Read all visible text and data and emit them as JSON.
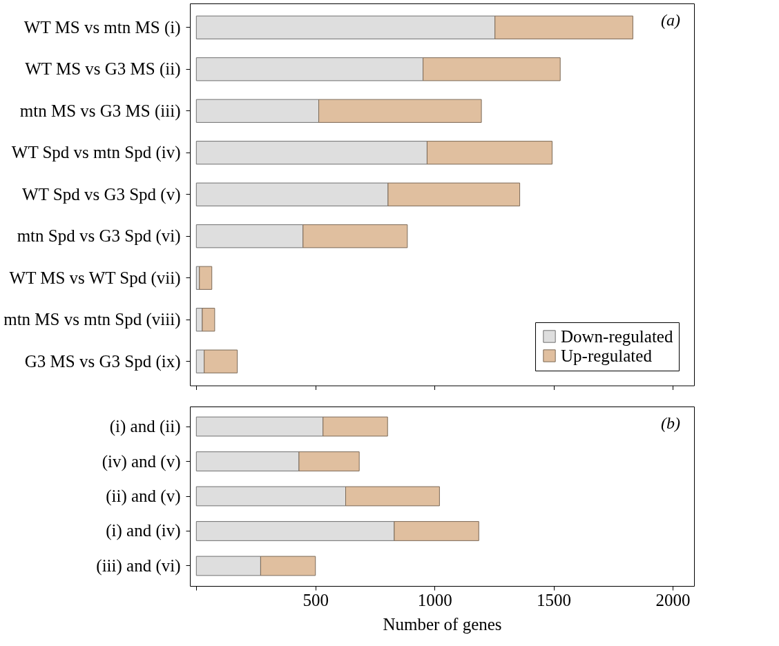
{
  "chart_data": [
    {
      "type": "bar",
      "orientation": "horizontal",
      "stacked": true,
      "categories": [
        "WT MS vs mtn MS (i)",
        "WT MS vs G3 MS (ii)",
        "mtn MS vs G3 MS (iii)",
        "WT Spd vs mtn Spd (iv)",
        "WT Spd vs G3 Spd (v)",
        "mtn Spd vs G3 Spd (vi)",
        "WT MS vs WT Spd (vii)",
        "mtn MS vs mtn Spd (viii)",
        "G3 MS vs G3 Spd (ix)"
      ],
      "series": [
        {
          "name": "Down-regulated",
          "color": "#dedede",
          "values": [
            1254,
            952,
            514,
            969,
            805,
            448,
            13,
            25,
            33
          ]
        },
        {
          "name": "Up-regulated",
          "color": "#e0bf9f",
          "values": [
            579,
            576,
            683,
            525,
            553,
            438,
            52,
            52,
            139
          ]
        }
      ],
      "xlim": [
        -27,
        2090
      ],
      "xticks": [
        {
          "value": 0,
          "label": null
        },
        500,
        1000,
        1500,
        2000
      ],
      "tick_labels": "y",
      "legend": "bottom right",
      "grid": false,
      "annotations": [
        "(a)"
      ]
    },
    {
      "type": "bar",
      "orientation": "horizontal",
      "stacked": true,
      "categories": [
        "(i) and (ii)",
        "(iv) and (v)",
        "(ii) and (v)",
        "(i) and (iv)",
        "(iii) and (vi)"
      ],
      "series": [
        {
          "color": "#dedede",
          "values": [
            532,
            431,
            627,
            831,
            270
          ]
        },
        {
          "color": "#e0bf9f",
          "values": [
            271,
            253,
            394,
            355,
            230
          ]
        }
      ],
      "xlim": [
        -27,
        2090
      ],
      "xticks": [
        {
          "value": 0,
          "label": null
        },
        500,
        1000,
        1500,
        2000
      ],
      "xlabel": "Number of genes",
      "grid": false,
      "annotations": [
        "(b)"
      ]
    }
  ]
}
